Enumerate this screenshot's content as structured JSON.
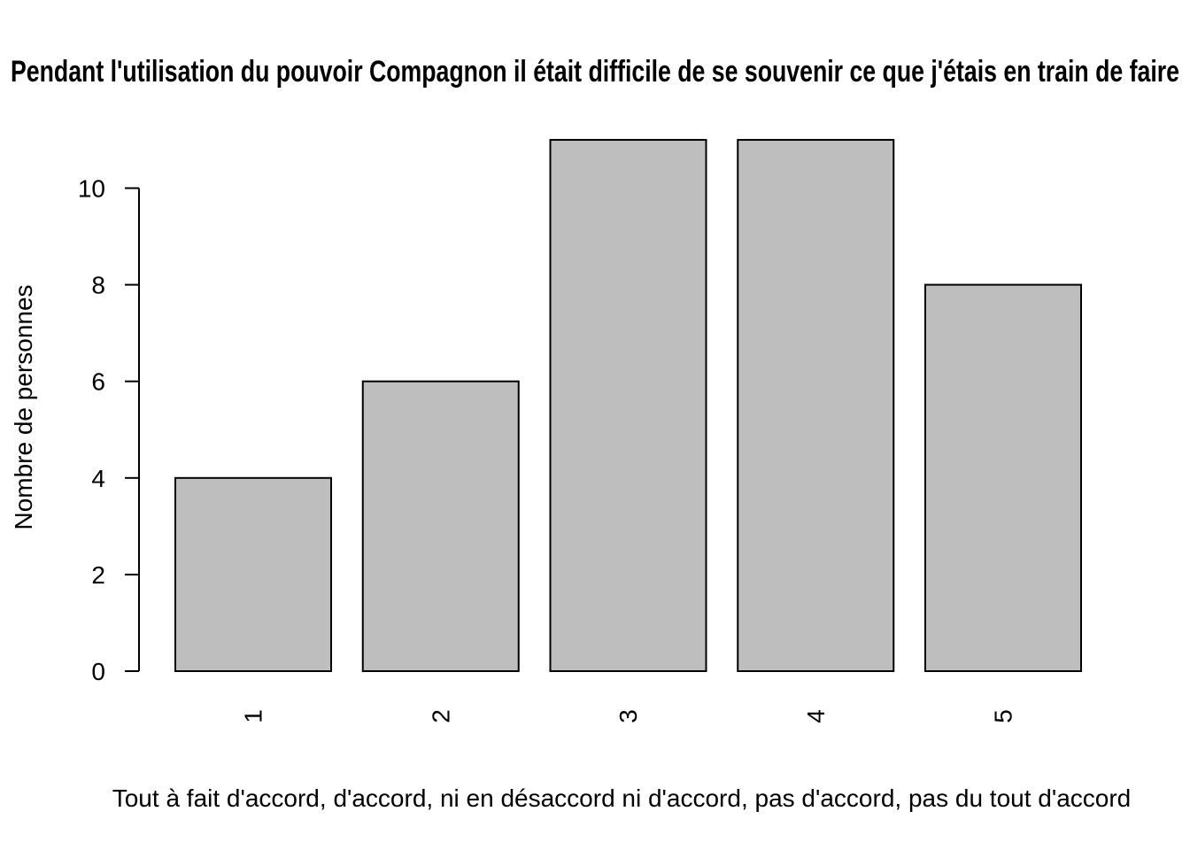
{
  "chart_data": {
    "type": "bar",
    "title": "Pendant l'utilisation du pouvoir Compagnon il était difficile de se souvenir ce que j'étais en train de faire",
    "xlabel": "Tout à fait d'accord, d'accord, ni en désaccord ni d'accord, pas d'accord, pas du tout d'accord",
    "ylabel": "Nombre de personnes",
    "categories": [
      "1",
      "2",
      "3",
      "4",
      "5"
    ],
    "values": [
      4,
      6,
      11,
      11,
      8
    ],
    "ylim": [
      0,
      11
    ],
    "yticks": [
      "0",
      "2",
      "4",
      "6",
      "8",
      "10"
    ],
    "bar_color": "#bebebe",
    "bar_edge_color": "#000000",
    "grid": false
  }
}
